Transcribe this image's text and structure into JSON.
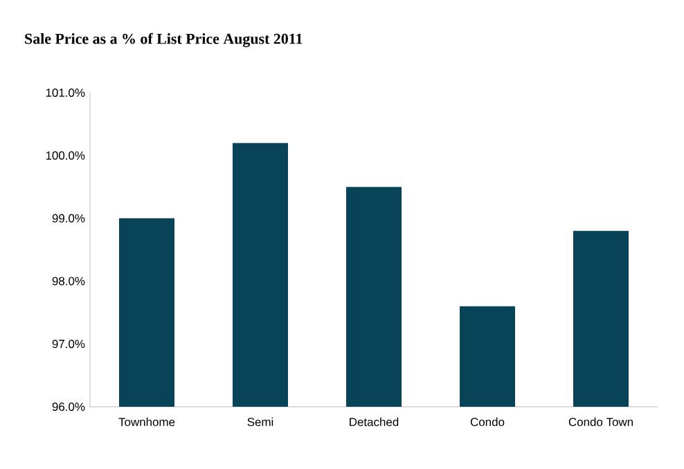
{
  "chart_data": {
    "type": "bar",
    "title": "Sale Price as a % of List Price August 2011",
    "categories": [
      "Townhome",
      "Semi",
      "Detached",
      "Condo",
      "Condo Town"
    ],
    "values": [
      99.0,
      100.2,
      99.5,
      97.6,
      98.8
    ],
    "color": "#084357",
    "ylim": [
      96,
      101
    ],
    "yticks": [
      {
        "value": 96,
        "label": "96.0%"
      },
      {
        "value": 97,
        "label": "97.0%"
      },
      {
        "value": 98,
        "label": "98.0%"
      },
      {
        "value": 99,
        "label": "99.0%"
      },
      {
        "value": 100,
        "label": "100.0%"
      },
      {
        "value": 101,
        "label": "101.0%"
      }
    ],
    "grid": false
  }
}
